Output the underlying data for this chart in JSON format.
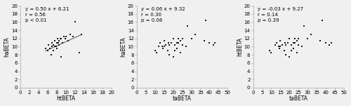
{
  "plot1": {
    "xlabel": "htBETA",
    "ylabel": "haBETA",
    "xlim": [
      0,
      20
    ],
    "ylim": [
      0,
      20
    ],
    "xticks": [
      0,
      2,
      4,
      6,
      8,
      10,
      12,
      14,
      16,
      18,
      20
    ],
    "yticks": [
      0,
      2,
      4,
      6,
      8,
      10,
      12,
      14,
      16,
      18,
      20
    ],
    "annotation": "y = 0.50 x + 6.21\nr = 0.56\np < 0.01",
    "slope": 0.5,
    "intercept": 6.21,
    "draw_line": true,
    "x_data": [
      5.5,
      6.0,
      6.2,
      6.5,
      6.8,
      7.0,
      7.0,
      7.2,
      7.3,
      7.5,
      7.5,
      7.8,
      8.0,
      8.0,
      8.2,
      8.3,
      8.5,
      8.5,
      8.8,
      9.0,
      9.0,
      9.2,
      9.5,
      9.8,
      10.0,
      10.5,
      11.0,
      11.5,
      12.0,
      13.0,
      13.5
    ],
    "y_data": [
      9.5,
      9.0,
      10.5,
      9.5,
      8.0,
      10.0,
      11.0,
      10.5,
      9.0,
      10.0,
      11.5,
      10.0,
      9.5,
      11.0,
      12.0,
      11.0,
      10.5,
      11.5,
      12.0,
      7.5,
      12.0,
      11.0,
      12.5,
      12.0,
      12.5,
      11.5,
      13.0,
      12.5,
      16.0,
      8.5,
      13.0
    ]
  },
  "plot2": {
    "xlabel": "taBETA",
    "ylabel": "haBETA",
    "xlim": [
      0,
      50
    ],
    "ylim": [
      0,
      20
    ],
    "xticks": [
      0,
      5,
      10,
      15,
      20,
      25,
      30,
      35,
      40,
      45,
      50
    ],
    "yticks": [
      0,
      2,
      4,
      6,
      8,
      10,
      12,
      14,
      16,
      18,
      20
    ],
    "annotation": "y = 0.06 x + 9.32\nr = 0.30\np = 0.06",
    "slope": 0.06,
    "intercept": 9.32,
    "draw_line": false,
    "x_data": [
      10.0,
      11.0,
      12.0,
      13.0,
      14.0,
      14.5,
      15.0,
      15.0,
      16.0,
      17.0,
      17.5,
      18.0,
      18.0,
      19.0,
      20.0,
      20.0,
      21.0,
      21.0,
      22.0,
      22.0,
      23.0,
      23.0,
      24.0,
      24.0,
      25.0,
      25.0,
      27.0,
      28.0,
      30.0,
      32.0,
      37.0,
      38.0,
      40.0,
      42.0,
      43.0
    ],
    "y_data": [
      9.0,
      8.5,
      10.0,
      11.0,
      10.0,
      9.5,
      10.0,
      11.5,
      10.5,
      9.0,
      11.0,
      8.0,
      10.5,
      11.0,
      7.5,
      12.0,
      9.0,
      10.5,
      9.5,
      11.0,
      11.0,
      12.0,
      11.5,
      8.5,
      10.5,
      12.0,
      10.0,
      15.0,
      12.0,
      13.0,
      11.5,
      16.5,
      11.0,
      10.5,
      11.0
    ]
  },
  "plot3": {
    "xlabel": "taBETA",
    "ylabel": "htBETA",
    "xlim": [
      0,
      50
    ],
    "ylim": [
      0,
      20
    ],
    "xticks": [
      0,
      5,
      10,
      15,
      20,
      25,
      30,
      35,
      40,
      45,
      50
    ],
    "yticks": [
      0,
      2,
      4,
      6,
      8,
      10,
      12,
      14,
      16,
      18,
      20
    ],
    "annotation": "y = -0.03 x + 9.27\nr = 0.14\np = 0.39",
    "slope": -0.03,
    "intercept": 9.27,
    "draw_line": false,
    "x_data": [
      9.0,
      10.0,
      12.0,
      13.0,
      14.0,
      14.5,
      15.0,
      15.0,
      16.0,
      17.0,
      17.5,
      18.0,
      18.0,
      19.0,
      20.0,
      20.0,
      21.0,
      21.0,
      22.0,
      22.0,
      23.0,
      23.0,
      24.0,
      24.0,
      25.0,
      25.0,
      27.0,
      28.0,
      30.0,
      32.0,
      37.0,
      38.0,
      40.0,
      42.0,
      43.0
    ],
    "y_data": [
      9.0,
      8.5,
      10.5,
      11.0,
      10.0,
      9.5,
      10.0,
      11.5,
      10.5,
      9.0,
      11.0,
      8.0,
      10.5,
      11.0,
      7.5,
      12.0,
      9.0,
      10.5,
      9.5,
      11.0,
      11.0,
      12.0,
      11.5,
      8.5,
      10.5,
      12.0,
      10.0,
      15.0,
      12.0,
      13.0,
      11.5,
      16.5,
      11.0,
      10.5,
      11.0
    ]
  },
  "dot_color": "#1a1a1a",
  "dot_size": 3.5,
  "dot_marker": "s",
  "line_color": "#555555",
  "font_size": 5.0,
  "label_font_size": 5.5,
  "bg_color": "#f0f0f0",
  "spine_color": "#aaaaaa"
}
